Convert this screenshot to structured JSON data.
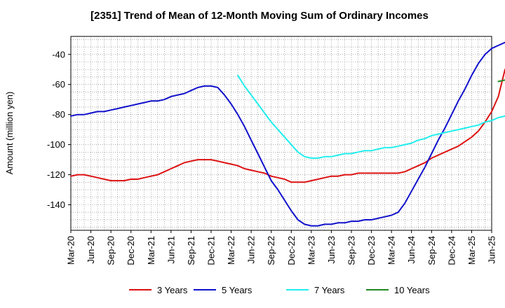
{
  "chart_data": {
    "type": "line",
    "title": "[2351]  Trend of Mean of 12-Month Moving Sum of Ordinary Incomes",
    "xlabel": "",
    "ylabel": "Amount (million yen)",
    "ylim": [
      -157,
      -28
    ],
    "yticks": [
      -40,
      -60,
      -80,
      -100,
      -120,
      -140
    ],
    "grid": true,
    "legend_position": "bottom",
    "x_tick_labels": [
      "Mar-20",
      "Jun-20",
      "Sep-20",
      "Dec-20",
      "Mar-21",
      "Jun-21",
      "Sep-21",
      "Dec-21",
      "Mar-22",
      "Jun-22",
      "Sep-22",
      "Dec-22",
      "Mar-23",
      "Jun-23",
      "Sep-23",
      "Dec-23",
      "Mar-24",
      "Jun-24",
      "Sep-24",
      "Dec-24",
      "Mar-25",
      "Jun-25"
    ],
    "x_months_start": "Mar-20",
    "series": [
      {
        "name": "3 Years",
        "color": "#dd1111",
        "points": [
          [
            0,
            -121
          ],
          [
            1,
            -120
          ],
          [
            2,
            -120
          ],
          [
            3,
            -121
          ],
          [
            4,
            -122
          ],
          [
            5,
            -123
          ],
          [
            6,
            -124
          ],
          [
            7,
            -124
          ],
          [
            8,
            -124
          ],
          [
            9,
            -123
          ],
          [
            10,
            -123
          ],
          [
            11,
            -122
          ],
          [
            12,
            -121
          ],
          [
            13,
            -120
          ],
          [
            14,
            -118
          ],
          [
            15,
            -116
          ],
          [
            16,
            -114
          ],
          [
            17,
            -112
          ],
          [
            18,
            -111
          ],
          [
            19,
            -110
          ],
          [
            20,
            -110
          ],
          [
            21,
            -110
          ],
          [
            22,
            -111
          ],
          [
            23,
            -112
          ],
          [
            24,
            -113
          ],
          [
            25,
            -114
          ],
          [
            26,
            -116
          ],
          [
            27,
            -117
          ],
          [
            28,
            -118
          ],
          [
            29,
            -119
          ],
          [
            30,
            -121
          ],
          [
            31,
            -122
          ],
          [
            32,
            -123
          ],
          [
            33,
            -125
          ],
          [
            34,
            -125
          ],
          [
            35,
            -125
          ],
          [
            36,
            -124
          ],
          [
            37,
            -123
          ],
          [
            38,
            -122
          ],
          [
            39,
            -121
          ],
          [
            40,
            -121
          ],
          [
            41,
            -120
          ],
          [
            42,
            -120
          ],
          [
            43,
            -119
          ],
          [
            44,
            -119
          ],
          [
            45,
            -119
          ],
          [
            46,
            -119
          ],
          [
            47,
            -119
          ],
          [
            48,
            -119
          ],
          [
            49,
            -119
          ],
          [
            50,
            -118
          ],
          [
            51,
            -116
          ],
          [
            52,
            -114
          ],
          [
            53,
            -112
          ],
          [
            54,
            -109
          ],
          [
            55,
            -107
          ],
          [
            56,
            -105
          ],
          [
            57,
            -103
          ],
          [
            58,
            -101
          ],
          [
            59,
            -98
          ],
          [
            60,
            -95
          ],
          [
            61,
            -91
          ],
          [
            62,
            -85
          ],
          [
            63,
            -78
          ],
          [
            64,
            -68
          ],
          [
            65,
            -50
          ]
        ]
      },
      {
        "name": "5 Years",
        "color": "#1111cc",
        "points": [
          [
            0,
            -81
          ],
          [
            1,
            -80
          ],
          [
            2,
            -80
          ],
          [
            3,
            -79
          ],
          [
            4,
            -78
          ],
          [
            5,
            -78
          ],
          [
            6,
            -77
          ],
          [
            7,
            -76
          ],
          [
            8,
            -75
          ],
          [
            9,
            -74
          ],
          [
            10,
            -73
          ],
          [
            11,
            -72
          ],
          [
            12,
            -71
          ],
          [
            13,
            -71
          ],
          [
            14,
            -70
          ],
          [
            15,
            -68
          ],
          [
            16,
            -67
          ],
          [
            17,
            -66
          ],
          [
            18,
            -64
          ],
          [
            19,
            -62
          ],
          [
            20,
            -61
          ],
          [
            21,
            -61
          ],
          [
            22,
            -62
          ],
          [
            23,
            -67
          ],
          [
            24,
            -73
          ],
          [
            25,
            -80
          ],
          [
            26,
            -88
          ],
          [
            27,
            -97
          ],
          [
            28,
            -106
          ],
          [
            29,
            -115
          ],
          [
            30,
            -124
          ],
          [
            31,
            -130
          ],
          [
            32,
            -137
          ],
          [
            33,
            -144
          ],
          [
            34,
            -150
          ],
          [
            35,
            -153
          ],
          [
            36,
            -154
          ],
          [
            37,
            -154
          ],
          [
            38,
            -153
          ],
          [
            39,
            -153
          ],
          [
            40,
            -152
          ],
          [
            41,
            -152
          ],
          [
            42,
            -151
          ],
          [
            43,
            -151
          ],
          [
            44,
            -150
          ],
          [
            45,
            -150
          ],
          [
            46,
            -149
          ],
          [
            47,
            -148
          ],
          [
            48,
            -147
          ],
          [
            49,
            -145
          ],
          [
            50,
            -139
          ],
          [
            51,
            -131
          ],
          [
            52,
            -123
          ],
          [
            53,
            -115
          ],
          [
            54,
            -106
          ],
          [
            55,
            -97
          ],
          [
            56,
            -89
          ],
          [
            57,
            -80
          ],
          [
            58,
            -71
          ],
          [
            59,
            -63
          ],
          [
            60,
            -54
          ],
          [
            61,
            -46
          ],
          [
            62,
            -40
          ],
          [
            63,
            -36
          ],
          [
            64,
            -34
          ],
          [
            65,
            -32
          ]
        ]
      },
      {
        "name": "7 Years",
        "color": "#22eeee",
        "points": [
          [
            25,
            -54
          ],
          [
            26,
            -61
          ],
          [
            27,
            -67
          ],
          [
            28,
            -73
          ],
          [
            29,
            -79
          ],
          [
            30,
            -85
          ],
          [
            31,
            -90
          ],
          [
            32,
            -95
          ],
          [
            33,
            -100
          ],
          [
            34,
            -105
          ],
          [
            35,
            -108
          ],
          [
            36,
            -109
          ],
          [
            37,
            -109
          ],
          [
            38,
            -108
          ],
          [
            39,
            -108
          ],
          [
            40,
            -107
          ],
          [
            41,
            -106
          ],
          [
            42,
            -106
          ],
          [
            43,
            -105
          ],
          [
            44,
            -104
          ],
          [
            45,
            -104
          ],
          [
            46,
            -103
          ],
          [
            47,
            -102
          ],
          [
            48,
            -102
          ],
          [
            49,
            -101
          ],
          [
            50,
            -100
          ],
          [
            51,
            -99
          ],
          [
            52,
            -97
          ],
          [
            53,
            -96
          ],
          [
            54,
            -94
          ],
          [
            55,
            -93
          ],
          [
            56,
            -92
          ],
          [
            57,
            -91
          ],
          [
            58,
            -90
          ],
          [
            59,
            -89
          ],
          [
            60,
            -88
          ],
          [
            61,
            -87
          ],
          [
            62,
            -85
          ],
          [
            63,
            -84
          ],
          [
            64,
            -82
          ],
          [
            65,
            -81
          ]
        ]
      },
      {
        "name": "10 Years",
        "color": "#228822",
        "points": [
          [
            64,
            -58
          ],
          [
            65,
            -57
          ]
        ]
      }
    ]
  }
}
